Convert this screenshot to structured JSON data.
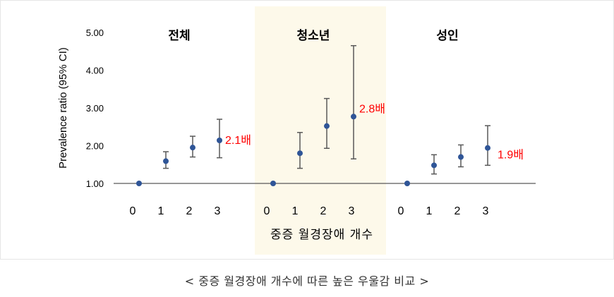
{
  "colors": {
    "highlight": "#fdf9ea",
    "marker": "#2f5597",
    "error_bar": "#595959",
    "axis": "#595959",
    "annotation": "#ff0000",
    "text": "#000000"
  },
  "chart_data": {
    "type": "scatter",
    "ylabel": "Prevalence ratio (95% CI)",
    "xlabel": "중증 월경장애 개수",
    "ylim": [
      1.0,
      5.0
    ],
    "yticks": [
      "1.00",
      "2.00",
      "3.00",
      "4.00",
      "5.00"
    ],
    "categories": [
      "0",
      "1",
      "2",
      "3"
    ],
    "panels": [
      {
        "name": "전체",
        "highlighted": false,
        "points": [
          {
            "x": "0",
            "y": 1.0,
            "low": 1.0,
            "high": 1.0
          },
          {
            "x": "1",
            "y": 1.59,
            "low": 1.4,
            "high": 1.84
          },
          {
            "x": "2",
            "y": 1.95,
            "low": 1.7,
            "high": 2.25
          },
          {
            "x": "3",
            "y": 2.14,
            "low": 1.68,
            "high": 2.7
          }
        ],
        "annotation": "2.1배"
      },
      {
        "name": "청소년",
        "highlighted": true,
        "points": [
          {
            "x": "0",
            "y": 1.0,
            "low": 1.0,
            "high": 1.0
          },
          {
            "x": "1",
            "y": 1.8,
            "low": 1.4,
            "high": 2.35
          },
          {
            "x": "2",
            "y": 2.52,
            "low": 1.93,
            "high": 3.25
          },
          {
            "x": "3",
            "y": 2.77,
            "low": 1.65,
            "high": 4.65
          }
        ],
        "annotation": "2.8배"
      },
      {
        "name": "성인",
        "highlighted": false,
        "points": [
          {
            "x": "0",
            "y": 1.0,
            "low": 1.0,
            "high": 1.0
          },
          {
            "x": "1",
            "y": 1.48,
            "low": 1.25,
            "high": 1.76
          },
          {
            "x": "2",
            "y": 1.7,
            "low": 1.44,
            "high": 2.02
          },
          {
            "x": "3",
            "y": 1.94,
            "low": 1.48,
            "high": 2.53
          }
        ],
        "annotation": "1.9배"
      }
    ]
  },
  "caption": "< 중증 월경장애 개수에 따른 높은 우울감 비교 >"
}
